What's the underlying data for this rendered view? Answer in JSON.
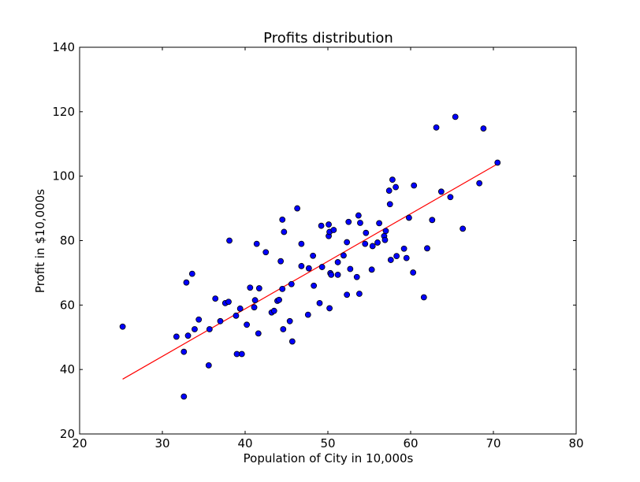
{
  "chart_data": {
    "type": "scatter",
    "title": "Profits distribution",
    "xlabel": "Population of City in 10,000s",
    "ylabel": "Profit in $10,000s",
    "xlim": [
      20,
      80
    ],
    "ylim": [
      20,
      140
    ],
    "xticks": [
      20,
      30,
      40,
      50,
      60,
      70,
      80
    ],
    "yticks": [
      20,
      40,
      60,
      80,
      100,
      120,
      140
    ],
    "grid": false,
    "marker_color": "#0000ff",
    "line_color": "#ff0000",
    "fit_line": {
      "x": [
        25.2,
        70.5
      ],
      "y": [
        37.0,
        103.8
      ]
    },
    "points": [
      [
        25.2,
        53.3
      ],
      [
        31.7,
        50.2
      ],
      [
        32.6,
        45.5
      ],
      [
        32.6,
        31.6
      ],
      [
        32.9,
        67.0
      ],
      [
        33.1,
        50.5
      ],
      [
        33.6,
        69.7
      ],
      [
        33.9,
        52.5
      ],
      [
        34.4,
        55.5
      ],
      [
        35.6,
        41.3
      ],
      [
        35.7,
        52.5
      ],
      [
        36.4,
        62.0
      ],
      [
        37.0,
        55.0
      ],
      [
        37.6,
        60.6
      ],
      [
        38.0,
        61.0
      ],
      [
        38.1,
        80.0
      ],
      [
        38.9,
        56.7
      ],
      [
        39.0,
        44.8
      ],
      [
        39.4,
        58.9
      ],
      [
        39.6,
        44.8
      ],
      [
        40.2,
        53.9
      ],
      [
        40.6,
        65.4
      ],
      [
        41.1,
        59.3
      ],
      [
        41.2,
        61.5
      ],
      [
        41.4,
        79.0
      ],
      [
        41.6,
        51.2
      ],
      [
        41.7,
        65.2
      ],
      [
        42.5,
        76.4
      ],
      [
        43.2,
        57.7
      ],
      [
        43.5,
        58.2
      ],
      [
        43.9,
        61.3
      ],
      [
        44.1,
        61.6
      ],
      [
        44.3,
        73.6
      ],
      [
        44.5,
        65.0
      ],
      [
        44.5,
        86.5
      ],
      [
        44.6,
        52.5
      ],
      [
        44.7,
        82.7
      ],
      [
        45.4,
        55.0
      ],
      [
        45.6,
        66.5
      ],
      [
        45.7,
        48.7
      ],
      [
        46.3,
        90.0
      ],
      [
        46.8,
        79.0
      ],
      [
        46.8,
        72.1
      ],
      [
        47.6,
        57.0
      ],
      [
        47.7,
        71.4
      ],
      [
        48.2,
        75.3
      ],
      [
        48.3,
        66.0
      ],
      [
        49.0,
        60.6
      ],
      [
        49.2,
        84.6
      ],
      [
        49.3,
        71.8
      ],
      [
        50.1,
        81.4
      ],
      [
        50.1,
        85.0
      ],
      [
        50.2,
        59.0
      ],
      [
        50.2,
        82.7
      ],
      [
        50.3,
        69.9
      ],
      [
        50.4,
        69.4
      ],
      [
        50.7,
        83.3
      ],
      [
        51.2,
        73.3
      ],
      [
        51.2,
        69.4
      ],
      [
        51.9,
        75.4
      ],
      [
        52.3,
        79.5
      ],
      [
        52.3,
        63.2
      ],
      [
        52.5,
        85.8
      ],
      [
        52.7,
        71.2
      ],
      [
        53.5,
        68.7
      ],
      [
        53.7,
        87.8
      ],
      [
        53.8,
        63.5
      ],
      [
        53.9,
        85.5
      ],
      [
        54.5,
        79.0
      ],
      [
        54.6,
        82.4
      ],
      [
        55.3,
        71.0
      ],
      [
        55.4,
        78.3
      ],
      [
        56.0,
        79.4
      ],
      [
        56.2,
        85.4
      ],
      [
        56.8,
        81.4
      ],
      [
        56.9,
        80.2
      ],
      [
        57.0,
        83.0
      ],
      [
        57.4,
        95.5
      ],
      [
        57.5,
        91.3
      ],
      [
        57.6,
        74.0
      ],
      [
        57.8,
        98.9
      ],
      [
        58.2,
        96.6
      ],
      [
        58.3,
        75.2
      ],
      [
        59.2,
        77.5
      ],
      [
        59.5,
        74.6
      ],
      [
        59.8,
        87.1
      ],
      [
        60.3,
        70.1
      ],
      [
        60.4,
        97.1
      ],
      [
        61.6,
        62.4
      ],
      [
        62.0,
        77.6
      ],
      [
        62.6,
        86.4
      ],
      [
        63.1,
        115.1
      ],
      [
        63.7,
        95.2
      ],
      [
        64.8,
        93.5
      ],
      [
        65.4,
        118.4
      ],
      [
        66.3,
        83.7
      ],
      [
        68.3,
        97.8
      ],
      [
        68.8,
        114.8
      ],
      [
        70.5,
        104.2
      ]
    ]
  }
}
